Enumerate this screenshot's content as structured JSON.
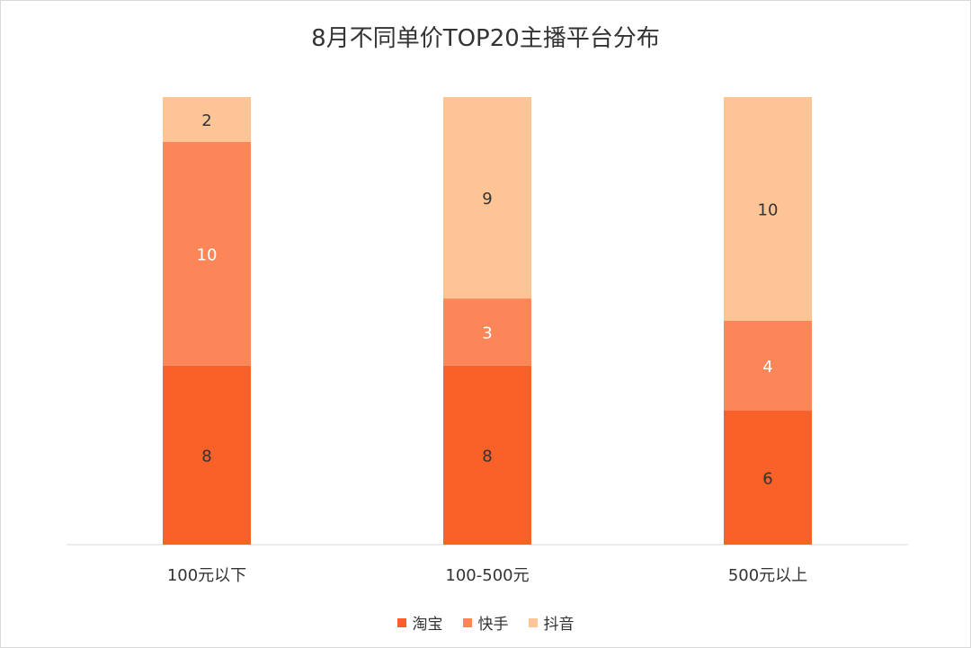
{
  "chart_data": {
    "type": "bar",
    "stacked": true,
    "normalized": true,
    "title": "8月不同单价TOP20主播平台分布",
    "categories": [
      "100元以下",
      "100-500元",
      "500元以上"
    ],
    "series": [
      {
        "name": "淘宝",
        "values": [
          8,
          8,
          6
        ],
        "color": "#f96129",
        "label_color": "#333333"
      },
      {
        "name": "快手",
        "values": [
          10,
          3,
          4
        ],
        "color": "#fd8659",
        "label_color": "#ffffff"
      },
      {
        "name": "抖音",
        "values": [
          2,
          9,
          10
        ],
        "color": "#fdc495",
        "label_color": "#333333"
      }
    ],
    "legend_position": "bottom",
    "grid": false
  }
}
